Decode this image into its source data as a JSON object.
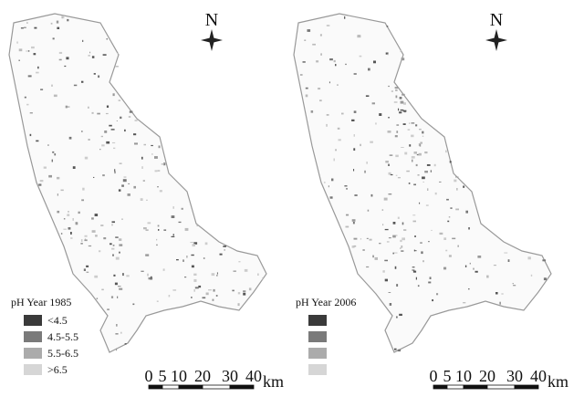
{
  "panels": [
    {
      "north": "N",
      "legend": {
        "title": "pH Year 1985",
        "items": [
          "<4.5",
          "4.5-5.5",
          "5.5-6.5",
          ">6.5"
        ],
        "colors": [
          "#3a3a3a",
          "#7a7a7a",
          "#ababab",
          "#d6d6d6"
        ]
      },
      "scale_bar": {
        "labels": [
          "0",
          "5",
          "10",
          "20",
          "30",
          "40"
        ],
        "unit": "km"
      }
    },
    {
      "north": "N",
      "legend": {
        "title": "pH Year 2006",
        "colors": [
          "#3a3a3a",
          "#7a7a7a",
          "#ababab",
          "#d6d6d6"
        ]
      },
      "scale_bar": {
        "labels": [
          "0",
          "5",
          "10",
          "20",
          "30",
          "40"
        ],
        "unit": "km"
      }
    }
  ]
}
